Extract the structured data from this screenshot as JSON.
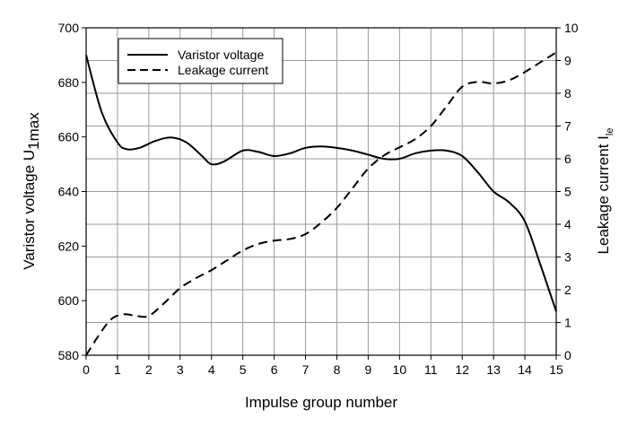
{
  "chart_data": {
    "type": "line",
    "xlabel": "Impulse group number",
    "ylabel_left": {
      "main": "Varistor voltage U",
      "sub": "1max"
    },
    "ylabel_right": {
      "main": "Leakage current I",
      "sub": "le"
    },
    "xlim": [
      0,
      15
    ],
    "ylim_left": [
      580,
      700
    ],
    "ylim_right": [
      0,
      10
    ],
    "x_ticks": [
      "0",
      "1",
      "2",
      "3",
      "4",
      "5",
      "6",
      "7",
      "8",
      "9",
      "10",
      "11",
      "12",
      "13",
      "14",
      "15"
    ],
    "y_left_ticks": [
      "580",
      "600",
      "620",
      "640",
      "660",
      "680",
      "700"
    ],
    "y_right_ticks": [
      "0",
      "1",
      "2",
      "3",
      "4",
      "5",
      "6",
      "7",
      "8",
      "9",
      "10"
    ],
    "grid": true,
    "legend_position": "top-left",
    "series": [
      {
        "name": "Varistor voltage",
        "axis": "left",
        "style": "solid",
        "color": "#000000",
        "x": [
          0,
          0.5,
          1,
          1.3,
          1.7,
          2.2,
          2.7,
          3.2,
          3.7,
          4,
          4.4,
          5,
          5.5,
          6,
          6.5,
          7,
          7.5,
          8,
          8.5,
          9,
          9.5,
          10,
          10.5,
          11,
          11.5,
          12,
          12.5,
          13,
          13.5,
          14,
          14.5,
          15
        ],
        "values": [
          690,
          669,
          658,
          655.5,
          656,
          658.5,
          659.8,
          658,
          653,
          650,
          651,
          655,
          654.5,
          653,
          654,
          656,
          656.5,
          656,
          655,
          653.5,
          652,
          652,
          654,
          655,
          655,
          653,
          647,
          640,
          636,
          629,
          613,
          596
        ]
      },
      {
        "name": "Leakage current",
        "axis": "right",
        "style": "dashed",
        "color": "#000000",
        "x": [
          0,
          0.4,
          0.8,
          1.2,
          1.6,
          2,
          2.5,
          3,
          3.5,
          4,
          4.5,
          5,
          5.5,
          6,
          6.5,
          7,
          7.5,
          8,
          8.5,
          9,
          9.5,
          10,
          10.5,
          11,
          11.5,
          12,
          12.5,
          13,
          13.5,
          14,
          14.5,
          15
        ],
        "values": [
          0,
          0.6,
          1.1,
          1.25,
          1.2,
          1.2,
          1.6,
          2.05,
          2.35,
          2.6,
          2.9,
          3.2,
          3.4,
          3.5,
          3.55,
          3.7,
          4.05,
          4.5,
          5.1,
          5.7,
          6.1,
          6.35,
          6.6,
          7.0,
          7.6,
          8.2,
          8.35,
          8.3,
          8.4,
          8.65,
          8.95,
          9.25
        ]
      }
    ]
  }
}
